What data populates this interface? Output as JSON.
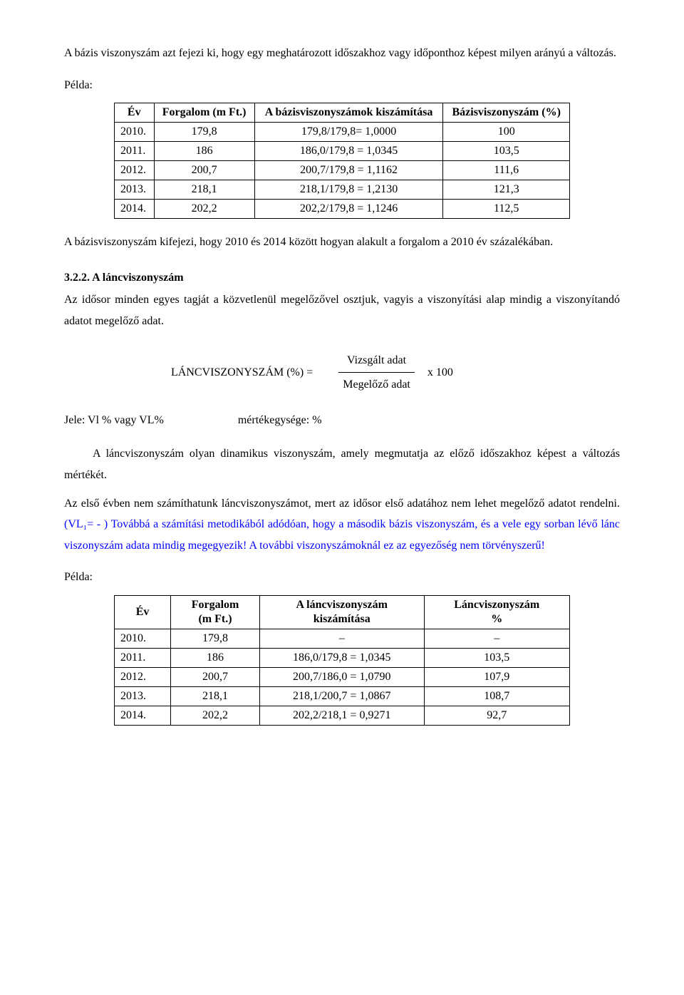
{
  "intro": "A bázis viszonyszám azt fejezi ki, hogy egy meghatározott időszakhoz vagy időponthoz képest milyen arányú a változás.",
  "example_label": "Példa:",
  "table1": {
    "headers": {
      "year": "Év",
      "forgalom": "Forgalom (m Ft.)",
      "calc": "A bázisviszonyszámok kiszámítása",
      "result": "Bázisviszonyszám (%)"
    },
    "rows": [
      {
        "year": "2010.",
        "val": "179,8",
        "calc": "179,8/179,8= 1,0000",
        "res": "100"
      },
      {
        "year": "2011.",
        "val": "186",
        "calc": "186,0/179,8 = 1,0345",
        "res": "103,5"
      },
      {
        "year": "2012.",
        "val": "200,7",
        "calc": "200,7/179,8 = 1,1162",
        "res": "111,6"
      },
      {
        "year": "2013.",
        "val": "218,1",
        "calc": "218,1/179,8 = 1,2130",
        "res": "121,3"
      },
      {
        "year": "2014.",
        "val": "202,2",
        "calc": "202,2/179,8 = 1,1246",
        "res": "112,5"
      }
    ]
  },
  "after_t1": "A bázisviszonyszám kifejezi, hogy 2010 és 2014 között hogyan alakult a forgalom a 2010 év százalékában.",
  "section_num": "3.2.2. A láncviszonyszám",
  "section_body": "Az idősor minden egyes tagját a közvetlenül megelőzővel osztjuk, vagyis a viszonyítási alap mindig a viszonyítandó adatot megelőző adat.",
  "formula": {
    "lhs": "LÁNCVISZONYSZÁM (%) =",
    "num": "Vizsgált adat",
    "den": "Megelőző adat",
    "rhs": "x 100"
  },
  "jele_label": "Jele: Vl % vagy VL%",
  "jele_unit": "mértékegysége:  %",
  "para_lead": "A láncviszonyszám olyan dinamikus viszonyszám, amely megmutatja az előző időszakhoz képest a változás mértékét.",
  "para2_black1": "Az első évben nem számíthatunk láncviszonyszámot, mert az idősor első adatához nem lehet megelőző adatot rendelni. ",
  "para2_blue": "(VL₁= - ) Továbbá a számítási metodikából adódóan, hogy a második bázis viszonyszám, és a vele egy sorban lévő lánc viszonyszám adata mindig megegyezik! A további viszonyszámoknál ez az egyezőség nem törvényszerű!",
  "table2": {
    "headers": {
      "year": "Év",
      "forgalom_l1": "Forgalom",
      "forgalom_l2": "(m Ft.)",
      "calc_l1": "A láncviszonyszám",
      "calc_l2": "kiszámítása",
      "result_l1": "Láncviszonyszám",
      "result_l2": "%"
    },
    "rows": [
      {
        "year": "2010.",
        "val": "179,8",
        "calc": "–",
        "res": "–"
      },
      {
        "year": "2011.",
        "val": "186",
        "calc": "186,0/179,8 = 1,0345",
        "res": "103,5"
      },
      {
        "year": "2012.",
        "val": "200,7",
        "calc": "200,7/186,0 = 1,0790",
        "res": "107,9"
      },
      {
        "year": "2013.",
        "val": "218,1",
        "calc": "218,1/200,7 = 1,0867",
        "res": "108,7"
      },
      {
        "year": "2014.",
        "val": "202,2",
        "calc": "202,2/218,1 = 0,9271",
        "res": "92,7"
      }
    ]
  }
}
